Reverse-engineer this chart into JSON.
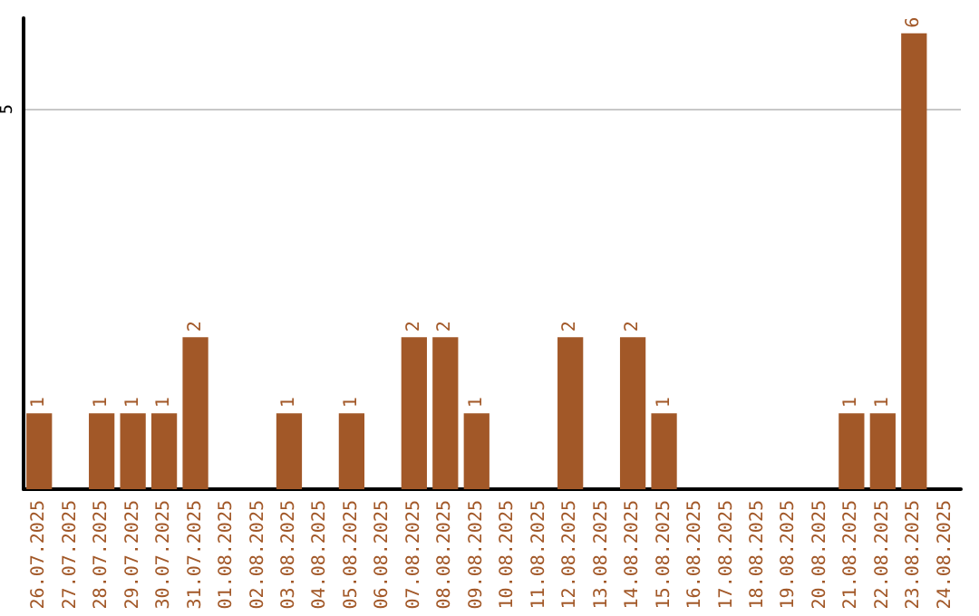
{
  "chart_data": {
    "type": "bar",
    "categories": [
      "26.07.2025",
      "27.07.2025",
      "28.07.2025",
      "29.07.2025",
      "30.07.2025",
      "31.07.2025",
      "01.08.2025",
      "02.08.2025",
      "03.08.2025",
      "04.08.2025",
      "05.08.2025",
      "06.08.2025",
      "07.08.2025",
      "08.08.2025",
      "09.08.2025",
      "10.08.2025",
      "11.08.2025",
      "12.08.2025",
      "13.08.2025",
      "14.08.2025",
      "15.08.2025",
      "16.08.2025",
      "17.08.2025",
      "18.08.2025",
      "19.08.2025",
      "20.08.2025",
      "21.08.2025",
      "22.08.2025",
      "23.08.2025",
      "24.08.2025"
    ],
    "values": [
      1,
      0,
      1,
      1,
      1,
      2,
      0,
      0,
      1,
      0,
      1,
      0,
      2,
      2,
      1,
      0,
      0,
      2,
      0,
      2,
      1,
      0,
      0,
      0,
      0,
      0,
      1,
      1,
      6,
      0
    ],
    "value_labels": [
      "1",
      null,
      "1",
      "1",
      "1",
      "2",
      null,
      null,
      "1",
      null,
      "1",
      null,
      "2",
      "2",
      "1",
      null,
      null,
      "2",
      null,
      "2",
      "1",
      null,
      null,
      null,
      null,
      null,
      "1",
      "1",
      "6",
      null
    ],
    "color": "#a25828",
    "ylim": [
      0,
      6.2
    ],
    "yticks": [
      5
    ],
    "grid": "y"
  }
}
